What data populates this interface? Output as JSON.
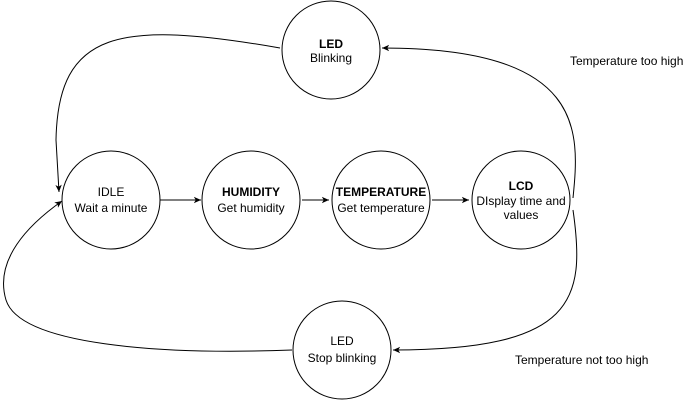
{
  "states": {
    "idle": {
      "title": "IDLE",
      "lines": [
        "Wait a minute"
      ]
    },
    "humidity": {
      "title": "HUMIDITY",
      "lines": [
        "Get humidity"
      ]
    },
    "temperature": {
      "title": "TEMPERATURE",
      "lines": [
        "Get temperature"
      ]
    },
    "lcd": {
      "title": "LCD",
      "lines": [
        "DIsplay time and",
        "values"
      ]
    },
    "led_blink": {
      "title": "LED",
      "lines": [
        "Blinking"
      ]
    },
    "led_stop": {
      "title": "LED",
      "lines": [
        "Stop blinking"
      ]
    }
  },
  "edge_labels": {
    "too_high": "Temperature too high",
    "not_too_high": "Temperature not too high"
  }
}
